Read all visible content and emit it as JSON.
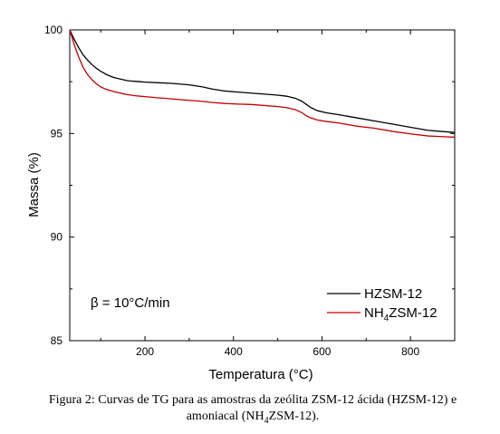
{
  "chart_data": {
    "type": "line",
    "title": "",
    "xlabel": "Temperatura (°C)",
    "ylabel": "Massa (%)",
    "xlim": [
      30,
      900
    ],
    "ylim": [
      85,
      100
    ],
    "xticks": [
      200,
      400,
      600,
      800
    ],
    "yticks": [
      85,
      90,
      95,
      100
    ],
    "grid": false,
    "legend_position": "bottom-right",
    "annotation": "β = 10°C/min",
    "series": [
      {
        "name": "HZSM-12",
        "name_main": "HZSM-12",
        "color": "#000000",
        "x": [
          30,
          40,
          50,
          60,
          70,
          80,
          90,
          100,
          110,
          120,
          130,
          140,
          150,
          160,
          175,
          190,
          200,
          230,
          260,
          300,
          330,
          350,
          380,
          410,
          440,
          470,
          500,
          520,
          540,
          555,
          565,
          575,
          590,
          610,
          640,
          680,
          720,
          760,
          800,
          840,
          870,
          900
        ],
        "y": [
          100,
          99.55,
          99.15,
          98.8,
          98.55,
          98.33,
          98.15,
          98.0,
          97.88,
          97.78,
          97.7,
          97.65,
          97.6,
          97.55,
          97.52,
          97.5,
          97.48,
          97.45,
          97.42,
          97.35,
          97.25,
          97.15,
          97.05,
          97.0,
          96.95,
          96.9,
          96.85,
          96.8,
          96.7,
          96.55,
          96.4,
          96.25,
          96.1,
          96.0,
          95.9,
          95.75,
          95.6,
          95.45,
          95.3,
          95.15,
          95.1,
          95.05
        ]
      },
      {
        "name": "NH4ZSM-12",
        "name_main": "NH",
        "name_sub": "4",
        "name_rest": "ZSM-12",
        "color": "#c00000",
        "x": [
          30,
          40,
          50,
          60,
          70,
          80,
          90,
          100,
          110,
          120,
          130,
          140,
          150,
          160,
          175,
          190,
          200,
          230,
          260,
          300,
          330,
          350,
          380,
          410,
          440,
          470,
          500,
          520,
          540,
          555,
          565,
          575,
          590,
          610,
          640,
          680,
          720,
          760,
          800,
          840,
          870,
          900
        ],
        "y": [
          100,
          99.3,
          98.7,
          98.2,
          97.85,
          97.6,
          97.4,
          97.25,
          97.15,
          97.08,
          97.02,
          96.97,
          96.92,
          96.88,
          96.83,
          96.8,
          96.78,
          96.72,
          96.67,
          96.6,
          96.55,
          96.5,
          96.45,
          96.42,
          96.4,
          96.35,
          96.3,
          96.25,
          96.15,
          96.0,
          95.85,
          95.75,
          95.65,
          95.58,
          95.5,
          95.35,
          95.25,
          95.1,
          94.98,
          94.88,
          94.85,
          94.82
        ]
      }
    ]
  },
  "caption": {
    "line1": "Figura 2: Curvas de TG para as amostras da zeólita ZSM-12 ácida (HZSM-12) e",
    "line2_pre": "amoniacal  (NH",
    "line2_sub": "4",
    "line2_post": "ZSM-12)."
  }
}
